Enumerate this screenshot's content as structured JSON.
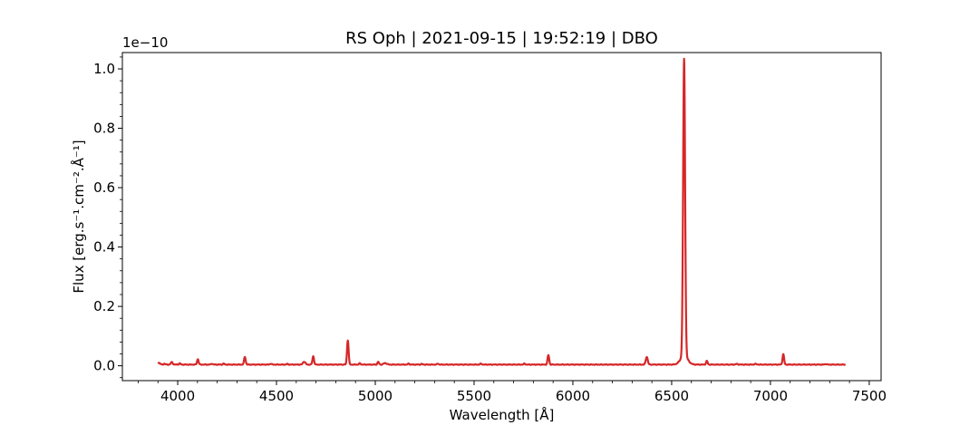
{
  "chart_data": {
    "type": "line",
    "title": "RS Oph | 2021-09-15 | 19:52:19 | DBO",
    "xlabel": "Wavelength [Å]",
    "ylabel": "Flux [erg.s⁻¹.cm⁻².Å⁻¹]",
    "y_offset_label": "1e−10",
    "y_scale": 1e-10,
    "xlim": [
      3720,
      7560
    ],
    "ylim": [
      -0.05,
      1.055
    ],
    "xticks": [
      4000,
      4500,
      5000,
      5500,
      6000,
      6500,
      7000,
      7500
    ],
    "xtick_labels": [
      "4000",
      "4500",
      "5000",
      "5500",
      "6000",
      "6500",
      "7000",
      "7500"
    ],
    "yticks": [
      0.0,
      0.2,
      0.4,
      0.6,
      0.8,
      1.0
    ],
    "ytick_labels": [
      "0.0",
      "0.2",
      "0.4",
      "0.6",
      "0.8",
      "1.0"
    ],
    "grid": false,
    "color": "#d62728",
    "series": [
      {
        "x_range": [
          3900,
          7380
        ],
        "continuum": 0.004,
        "lines": [
          {
            "center": 3905,
            "peak": 0.006,
            "width": 6
          },
          {
            "center": 3933,
            "peak": 0.003,
            "width": 4
          },
          {
            "center": 3970,
            "peak": 0.008,
            "width": 5
          },
          {
            "center": 4010,
            "peak": 0.004,
            "width": 4
          },
          {
            "center": 4102,
            "peak": 0.018,
            "width": 4
          },
          {
            "center": 4173,
            "peak": 0.003,
            "width": 4
          },
          {
            "center": 4233,
            "peak": 0.003,
            "width": 4
          },
          {
            "center": 4340,
            "peak": 0.026,
            "width": 4
          },
          {
            "center": 4471,
            "peak": 0.003,
            "width": 4
          },
          {
            "center": 4555,
            "peak": 0.002,
            "width": 4
          },
          {
            "center": 4640,
            "peak": 0.01,
            "width": 6
          },
          {
            "center": 4686,
            "peak": 0.028,
            "width": 4
          },
          {
            "center": 4861,
            "peak": 0.082,
            "width": 4
          },
          {
            "center": 4922,
            "peak": 0.004,
            "width": 4
          },
          {
            "center": 5015,
            "peak": 0.009,
            "width": 4
          },
          {
            "center": 5050,
            "peak": 0.005,
            "width": 8
          },
          {
            "center": 5169,
            "peak": 0.003,
            "width": 4
          },
          {
            "center": 5235,
            "peak": 0.002,
            "width": 4
          },
          {
            "center": 5317,
            "peak": 0.003,
            "width": 4
          },
          {
            "center": 5535,
            "peak": 0.003,
            "width": 4
          },
          {
            "center": 5755,
            "peak": 0.003,
            "width": 4
          },
          {
            "center": 5876,
            "peak": 0.032,
            "width": 4
          },
          {
            "center": 6374,
            "peak": 0.026,
            "width": 5
          },
          {
            "center": 6563,
            "peak": 1.0,
            "width": 5
          },
          {
            "center": 6563,
            "peak": 0.03,
            "width": 18
          },
          {
            "center": 6678,
            "peak": 0.012,
            "width": 4
          },
          {
            "center": 6830,
            "peak": 0.002,
            "width": 6
          },
          {
            "center": 6925,
            "peak": 0.002,
            "width": 6
          },
          {
            "center": 7065,
            "peak": 0.035,
            "width": 4
          },
          {
            "center": 7280,
            "peak": 0.002,
            "width": 4
          }
        ]
      }
    ]
  }
}
